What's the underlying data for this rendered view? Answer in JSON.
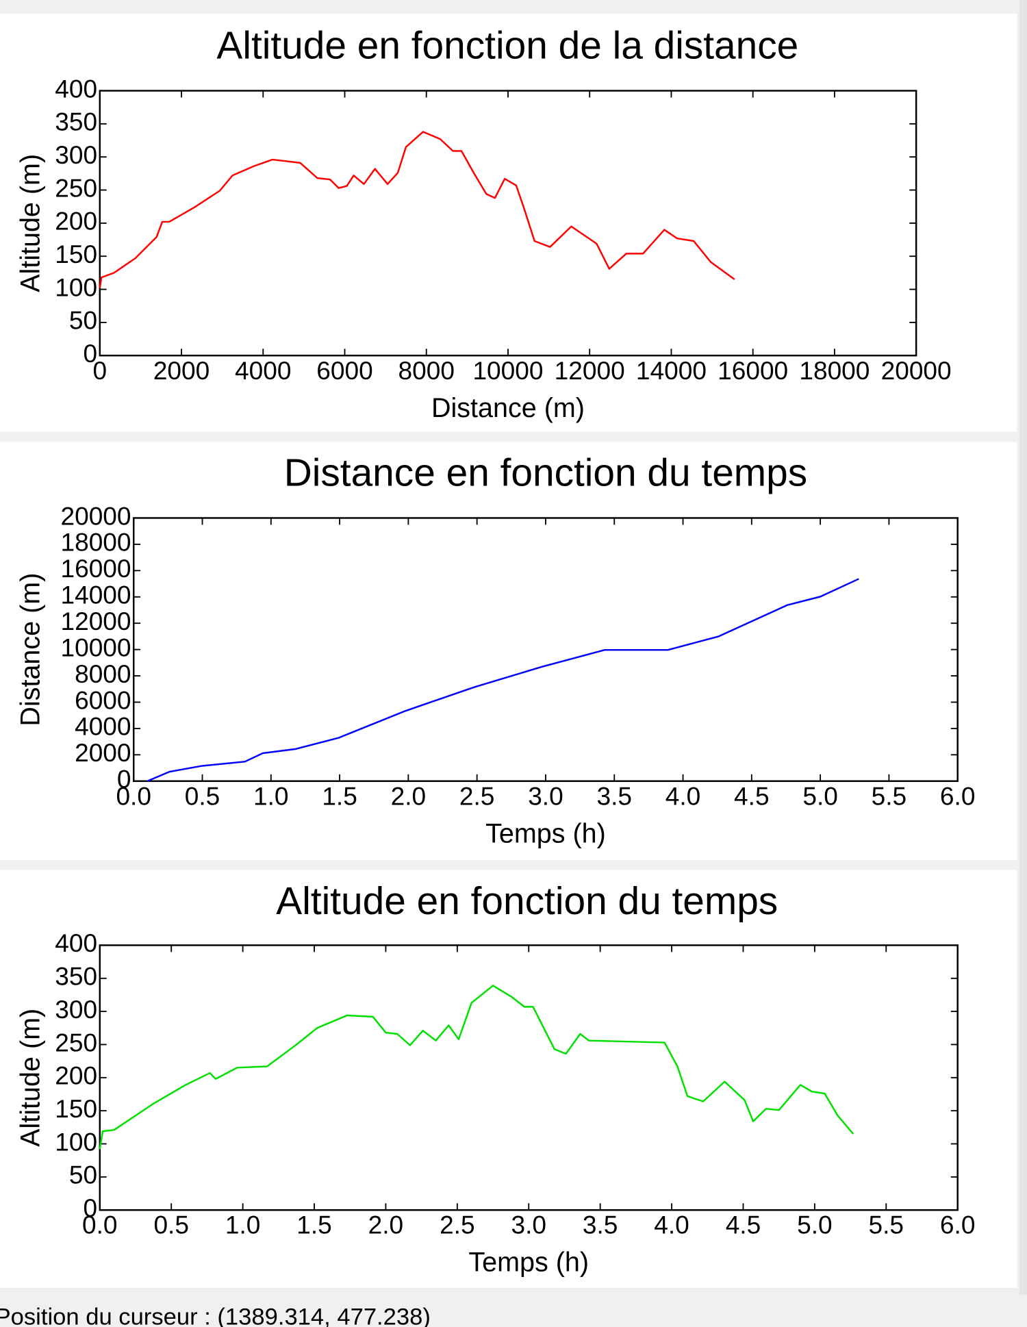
{
  "chart_data": [
    {
      "type": "line",
      "title": "Altitude en fonction de la distance",
      "x_label": "Distance (m)",
      "y_label": "Altitude (m)",
      "xlim": [
        0,
        20000
      ],
      "xticks": [
        0,
        2000,
        4000,
        6000,
        8000,
        10000,
        12000,
        14000,
        16000,
        18000,
        20000
      ],
      "ylim": [
        0,
        400
      ],
      "yticks": [
        0,
        50,
        100,
        150,
        200,
        250,
        300,
        350,
        400
      ],
      "series": [
        {
          "color": "#ff0000",
          "x": [
            0,
            40,
            350,
            870,
            1390,
            1530,
            1700,
            2320,
            2940,
            3250,
            3770,
            4230,
            4910,
            5330,
            5640,
            5850,
            6050,
            6220,
            6470,
            6740,
            7050,
            7300,
            7500,
            7920,
            8340,
            8650,
            8860,
            9160,
            9470,
            9680,
            9920,
            10200,
            10400,
            10650,
            11030,
            11550,
            11860,
            12170,
            12480,
            12900,
            13310,
            13830,
            14140,
            14550,
            14970,
            15550
          ],
          "values": [
            102,
            118,
            125,
            147,
            179,
            202,
            202,
            224,
            249,
            272,
            286,
            296,
            291,
            268,
            266,
            253,
            256,
            272,
            259,
            282,
            259,
            276,
            315,
            338,
            327,
            309,
            309,
            276,
            244,
            238,
            267,
            257,
            221,
            173,
            164,
            195,
            182,
            169,
            131,
            154,
            154,
            190,
            177,
            173,
            141,
            115
          ]
        }
      ]
    },
    {
      "type": "line",
      "title": "Distance en fonction du temps",
      "x_label": "Temps (h)",
      "y_label": "Distance (m)",
      "xlim": [
        0,
        6
      ],
      "xticks": [
        {
          "value": 0,
          "label": "0.0"
        },
        0.5,
        {
          "value": 1,
          "label": "1.0"
        },
        1.5,
        {
          "value": 2,
          "label": "2.0"
        },
        2.5,
        {
          "value": 3,
          "label": "3.0"
        },
        3.5,
        {
          "value": 4,
          "label": "4.0"
        },
        4.5,
        {
          "value": 5,
          "label": "5.0"
        },
        5.5,
        {
          "value": 6,
          "label": "6.0"
        }
      ],
      "ylim": [
        0,
        20000
      ],
      "yticks": [
        0,
        2000,
        4000,
        6000,
        8000,
        10000,
        12000,
        14000,
        16000,
        18000,
        20000
      ],
      "series": [
        {
          "color": "#0000ff",
          "x": [
            0.1,
            0.26,
            0.5,
            0.81,
            0.94,
            1.18,
            1.49,
            1.98,
            2.48,
            2.97,
            3.43,
            3.89,
            4.26,
            4.76,
            5.0,
            5.28
          ],
          "values": [
            0,
            710,
            1160,
            1480,
            2120,
            2440,
            3280,
            5340,
            7140,
            8680,
            9970,
            9970,
            11000,
            13380,
            14020,
            15370
          ]
        }
      ]
    },
    {
      "type": "line",
      "title": "Altitude en fonction du temps",
      "x_label": "Temps (h)",
      "y_label": "Altitude (m)",
      "xlim": [
        0,
        6
      ],
      "xticks": [
        {
          "value": 0,
          "label": "0.0"
        },
        0.5,
        {
          "value": 1,
          "label": "1.0"
        },
        1.5,
        {
          "value": 2,
          "label": "2.0"
        },
        2.5,
        {
          "value": 3,
          "label": "3.0"
        },
        3.5,
        {
          "value": 4,
          "label": "4.0"
        },
        4.5,
        {
          "value": 5,
          "label": "5.0"
        },
        5.5,
        {
          "value": 6,
          "label": "6.0"
        }
      ],
      "ylim": [
        0,
        400
      ],
      "yticks": [
        0,
        50,
        100,
        150,
        200,
        250,
        300,
        350,
        400
      ],
      "series": [
        {
          "color": "#00e000",
          "x": [
            0,
            0.02,
            0.1,
            0.37,
            0.6,
            0.77,
            0.81,
            0.96,
            1.17,
            1.37,
            1.52,
            1.73,
            1.91,
            2.0,
            2.08,
            2.17,
            2.26,
            2.35,
            2.44,
            2.51,
            2.6,
            2.75,
            2.88,
            2.97,
            3.03,
            3.18,
            3.26,
            3.36,
            3.42,
            3.95,
            4.04,
            4.11,
            4.22,
            4.37,
            4.51,
            4.57,
            4.66,
            4.75,
            4.9,
            4.98,
            5.07,
            5.16,
            5.27
          ],
          "values": [
            92,
            119,
            121,
            160,
            189,
            207,
            198,
            215,
            217,
            249,
            275,
            294,
            292,
            268,
            266,
            249,
            271,
            256,
            279,
            258,
            313,
            339,
            322,
            307,
            307,
            243,
            236,
            266,
            256,
            253,
            217,
            172,
            164,
            194,
            166,
            134,
            153,
            151,
            189,
            179,
            176,
            143,
            115
          ]
        }
      ]
    }
  ],
  "status_bar": "Position du curseur : (1389.314, 477.238)"
}
